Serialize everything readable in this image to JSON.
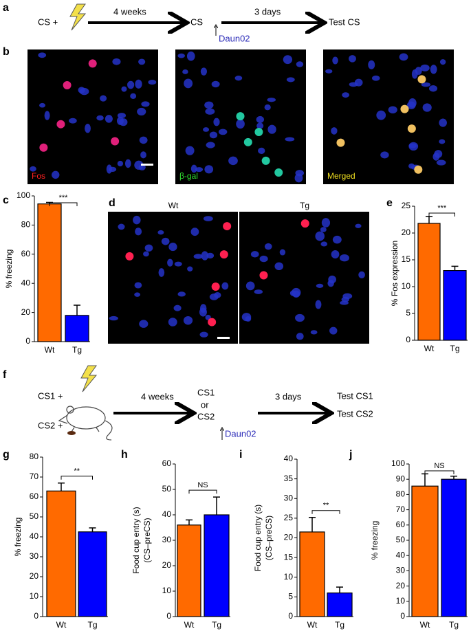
{
  "panel_labels": [
    "a",
    "b",
    "c",
    "d",
    "e",
    "f",
    "g",
    "h",
    "i",
    "j"
  ],
  "schematic_a": {
    "cs": "CS +",
    "step1": "4 weeks",
    "mid": "CS",
    "step2": "3 days",
    "test": "Test CS",
    "drug": "Daun02"
  },
  "images_b": [
    "Fos",
    "β-gal",
    "Merged"
  ],
  "images_d": [
    "Wt",
    "Tg"
  ],
  "schematic_f": {
    "cs1": "CS1 +",
    "cs2": "CS2 +",
    "step1": "4 weeks",
    "mid1": "CS1",
    "mid_or": "or",
    "mid2": "CS2",
    "step2": "3 days",
    "test1": "Test CS1",
    "test2": "Test CS2",
    "drug": "Daun02"
  },
  "chart_data": [
    {
      "type": "bar",
      "ylabel": [
        "% freezing"
      ],
      "categories": [
        "Wt",
        "Tg"
      ],
      "values": [
        94.5,
        18
      ],
      "errors": [
        1,
        7
      ],
      "colors": [
        "#ff6a00",
        "#0000ff"
      ],
      "ylim": [
        0,
        100
      ],
      "yticks": [
        0,
        20,
        40,
        60,
        80,
        100
      ],
      "significance": "***"
    },
    {
      "type": "bar",
      "ylabel": [
        "% Fos expression"
      ],
      "categories": [
        "Wt",
        "Tg"
      ],
      "values": [
        21.8,
        13
      ],
      "errors": [
        1.3,
        0.8
      ],
      "colors": [
        "#ff6a00",
        "#0000ff"
      ],
      "ylim": [
        0,
        25
      ],
      "yticks": [
        0,
        5,
        10,
        15,
        20,
        25
      ],
      "significance": "***"
    },
    {
      "type": "bar",
      "ylabel": [
        "% freezing"
      ],
      "categories": [
        "Wt",
        "Tg"
      ],
      "values": [
        63,
        42.5
      ],
      "errors": [
        4,
        2
      ],
      "colors": [
        "#ff6a00",
        "#0000ff"
      ],
      "ylim": [
        0,
        80
      ],
      "yticks": [
        0,
        10,
        20,
        30,
        40,
        50,
        60,
        70,
        80
      ],
      "significance": "**"
    },
    {
      "type": "bar",
      "ylabel": [
        "Food cup entry (s)",
        "(CS–preCS)"
      ],
      "categories": [
        "Wt",
        "Tg"
      ],
      "values": [
        36,
        40
      ],
      "errors": [
        2,
        7
      ],
      "colors": [
        "#ff6a00",
        "#0000ff"
      ],
      "ylim": [
        0,
        60
      ],
      "yticks": [
        0,
        10,
        20,
        30,
        40,
        50,
        60
      ],
      "significance": "NS"
    },
    {
      "type": "bar",
      "ylabel": [
        "Food cup entry (s)",
        "(CS–preCS)"
      ],
      "categories": [
        "Wt",
        "Tg"
      ],
      "values": [
        21.5,
        6
      ],
      "errors": [
        3.7,
        1.5
      ],
      "colors": [
        "#ff6a00",
        "#0000ff"
      ],
      "ylim": [
        0,
        40
      ],
      "yticks": [
        0,
        5,
        10,
        15,
        20,
        25,
        30,
        35,
        40
      ],
      "significance": "**"
    },
    {
      "type": "bar",
      "ylabel": [
        "% freezing"
      ],
      "categories": [
        "Wt",
        "Tg"
      ],
      "values": [
        85.5,
        90
      ],
      "errors": [
        8,
        2
      ],
      "colors": [
        "#ff6a00",
        "#0000ff"
      ],
      "ylim": [
        0,
        100
      ],
      "yticks": [
        0,
        10,
        20,
        30,
        40,
        50,
        60,
        70,
        80,
        90,
        100
      ],
      "significance": "NS"
    }
  ]
}
